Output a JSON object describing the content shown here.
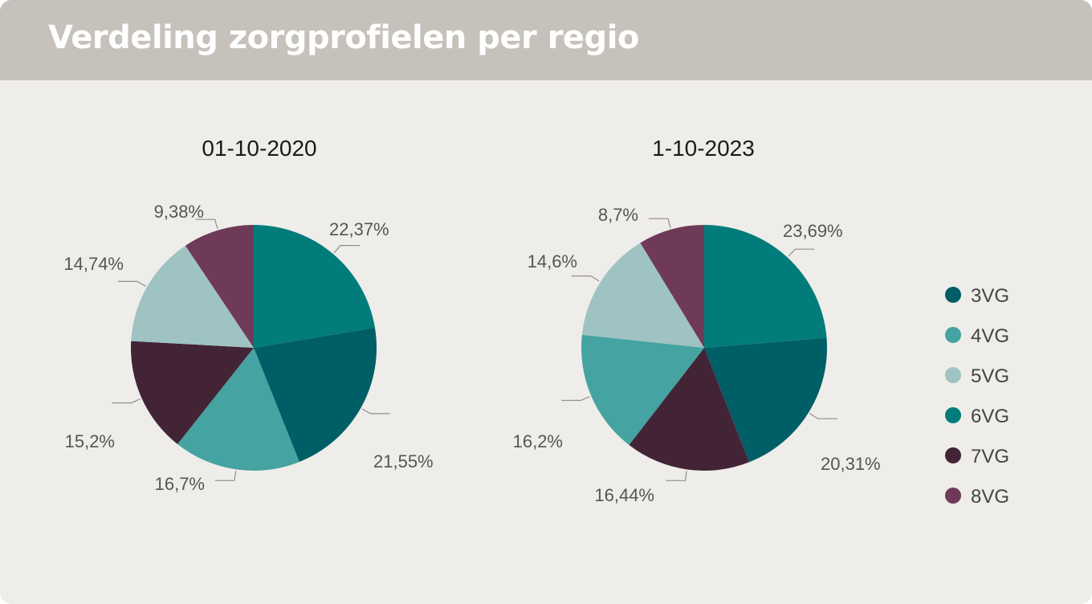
{
  "header": {
    "title": "Verdeling zorgprofielen per regio"
  },
  "legend": {
    "items": [
      {
        "label": "3VG",
        "color": "#005e67"
      },
      {
        "label": "4VG",
        "color": "#45a3a1"
      },
      {
        "label": "5VG",
        "color": "#9ec3c2"
      },
      {
        "label": "6VG",
        "color": "#017c7b"
      },
      {
        "label": "7VG",
        "color": "#432437"
      },
      {
        "label": "8VG",
        "color": "#6e3a58"
      }
    ]
  },
  "chart_data": [
    {
      "type": "pie",
      "title": "01-10-2020",
      "categories": [
        "6VG",
        "3VG",
        "4VG",
        "7VG",
        "5VG",
        "8VG"
      ],
      "values": [
        22.37,
        21.55,
        16.7,
        15.2,
        14.74,
        9.38
      ],
      "labels": [
        "22,37%",
        "21,55%",
        "16,7%",
        "15,2%",
        "14,74%",
        "9,38%"
      ]
    },
    {
      "type": "pie",
      "title": "1-10-2023",
      "categories": [
        "6VG",
        "3VG",
        "7VG",
        "4VG",
        "5VG",
        "8VG"
      ],
      "values": [
        23.69,
        20.31,
        16.44,
        16.2,
        14.6,
        8.7
      ],
      "labels": [
        "23,69%",
        "20,31%",
        "16,44%",
        "16,2%",
        "14,6%",
        "8,7%"
      ]
    }
  ]
}
